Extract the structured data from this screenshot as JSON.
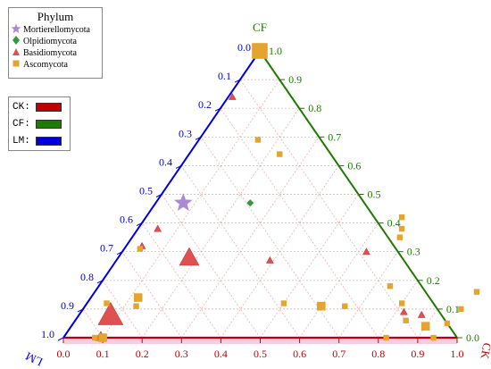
{
  "chart_data": {
    "type": "ternary-scatter",
    "axes": [
      {
        "key": "CF",
        "label": "CF",
        "color": "#1e7a00"
      },
      {
        "key": "LM",
        "label": "LM",
        "color": "#0000dd"
      },
      {
        "key": "CK",
        "label": "CK",
        "color": "#c00000"
      }
    ],
    "ticks": [
      "0.0",
      "0.1",
      "0.2",
      "0.3",
      "0.4",
      "0.5",
      "0.6",
      "0.7",
      "0.8",
      "0.9",
      "1.0"
    ],
    "grid": true,
    "legend": {
      "title": "Phylum",
      "position": "top-left",
      "entries": [
        {
          "name": "Mortierellomycota",
          "symbol": "star",
          "color": "#a98bd4"
        },
        {
          "name": "Olpidiomycota",
          "symbol": "diamond",
          "color": "#2e9a3a"
        },
        {
          "name": "Basidiomycota",
          "symbol": "triangle",
          "color": "#e05050"
        },
        {
          "name": "Ascomycota",
          "symbol": "square",
          "color": "#e3a52e"
        }
      ]
    },
    "axis_legend": [
      {
        "label": "CK:",
        "color": "#c00000"
      },
      {
        "label": "CF:",
        "color": "#1e7a00"
      },
      {
        "label": "LM:",
        "color": "#0000dd"
      }
    ],
    "points": [
      {
        "phylum": "Mortierellomycota",
        "CF": 0.47,
        "CK": 0.07,
        "size": 3
      },
      {
        "phylum": "Olpidiomycota",
        "CF": 0.47,
        "CK": 0.24,
        "size": 1
      },
      {
        "phylum": "Basidiomycota",
        "CF": 0.28,
        "CK": 0.18,
        "size": 3
      },
      {
        "phylum": "Basidiomycota",
        "CF": 0.08,
        "CK": 0.08,
        "size": 4
      },
      {
        "phylum": "Basidiomycota",
        "CF": 0.27,
        "CK": 0.39,
        "size": 1
      },
      {
        "phylum": "Basidiomycota",
        "CF": 0.84,
        "CK": 0.01,
        "size": 1
      },
      {
        "phylum": "Basidiomycota",
        "CF": 0.38,
        "CK": 0.05,
        "size": 1
      },
      {
        "phylum": "Basidiomycota",
        "CF": 0.32,
        "CK": 0.04,
        "size": 1
      },
      {
        "phylum": "Basidiomycota",
        "CF": 0.01,
        "CK": 0.09,
        "size": 1
      },
      {
        "phylum": "Basidiomycota",
        "CF": 0.0,
        "CK": 0.09,
        "size": 1
      },
      {
        "phylum": "Basidiomycota",
        "CF": 0.3,
        "CK": 0.62,
        "size": 1
      },
      {
        "phylum": "Basidiomycota",
        "CF": 0.09,
        "CK": 0.82,
        "size": 1
      },
      {
        "phylum": "Basidiomycota",
        "CF": 0.08,
        "CK": 0.87,
        "size": 1
      },
      {
        "phylum": "Ascomycota",
        "CF": 1.0,
        "CK": 0.0,
        "size": 3
      },
      {
        "phylum": "Ascomycota",
        "CF": 0.69,
        "CK": 0.15,
        "size": 1
      },
      {
        "phylum": "Ascomycota",
        "CF": 0.64,
        "CK": 0.23,
        "size": 1
      },
      {
        "phylum": "Ascomycota",
        "CF": 0.42,
        "CK": 0.65,
        "size": 1
      },
      {
        "phylum": "Ascomycota",
        "CF": 0.38,
        "CK": 0.67,
        "size": 1
      },
      {
        "phylum": "Ascomycota",
        "CF": 0.35,
        "CK": 0.68,
        "size": 1
      },
      {
        "phylum": "Ascomycota",
        "CF": 0.31,
        "CK": 0.04,
        "size": 1
      },
      {
        "phylum": "Ascomycota",
        "CF": 0.14,
        "CK": 0.12,
        "size": 2
      },
      {
        "phylum": "Ascomycota",
        "CF": 0.11,
        "CK": 0.13,
        "size": 1
      },
      {
        "phylum": "Ascomycota",
        "CF": 0.12,
        "CK": 0.05,
        "size": 1
      },
      {
        "phylum": "Ascomycota",
        "CF": 0.12,
        "CK": 0.5,
        "size": 1
      },
      {
        "phylum": "Ascomycota",
        "CF": 0.11,
        "CK": 0.6,
        "size": 2
      },
      {
        "phylum": "Ascomycota",
        "CF": 0.11,
        "CK": 0.66,
        "size": 1
      },
      {
        "phylum": "Ascomycota",
        "CF": 0.18,
        "CK": 0.74,
        "size": 1
      },
      {
        "phylum": "Ascomycota",
        "CF": 0.12,
        "CK": 0.8,
        "size": 1
      },
      {
        "phylum": "Ascomycota",
        "CF": 0.06,
        "CK": 0.84,
        "size": 1
      },
      {
        "phylum": "Ascomycota",
        "CF": 0.04,
        "CK": 0.9,
        "size": 2
      },
      {
        "phylum": "Ascomycota",
        "CF": 0.05,
        "CK": 0.95,
        "size": 1
      },
      {
        "phylum": "Ascomycota",
        "CF": 0.0,
        "CK": 0.82,
        "size": 1
      },
      {
        "phylum": "Ascomycota",
        "CF": 0.0,
        "CK": 0.94,
        "size": 1
      },
      {
        "phylum": "Ascomycota",
        "CF": 0.0,
        "CK": 0.08,
        "size": 1
      },
      {
        "phylum": "Ascomycota",
        "CF": 0.0,
        "CK": 0.1,
        "size": 2
      },
      {
        "phylum": "Ascomycota",
        "CF": 0.1,
        "CK": 0.96,
        "size": 1
      },
      {
        "phylum": "Ascomycota",
        "CF": 0.16,
        "CK": 0.97,
        "size": 1
      }
    ]
  }
}
